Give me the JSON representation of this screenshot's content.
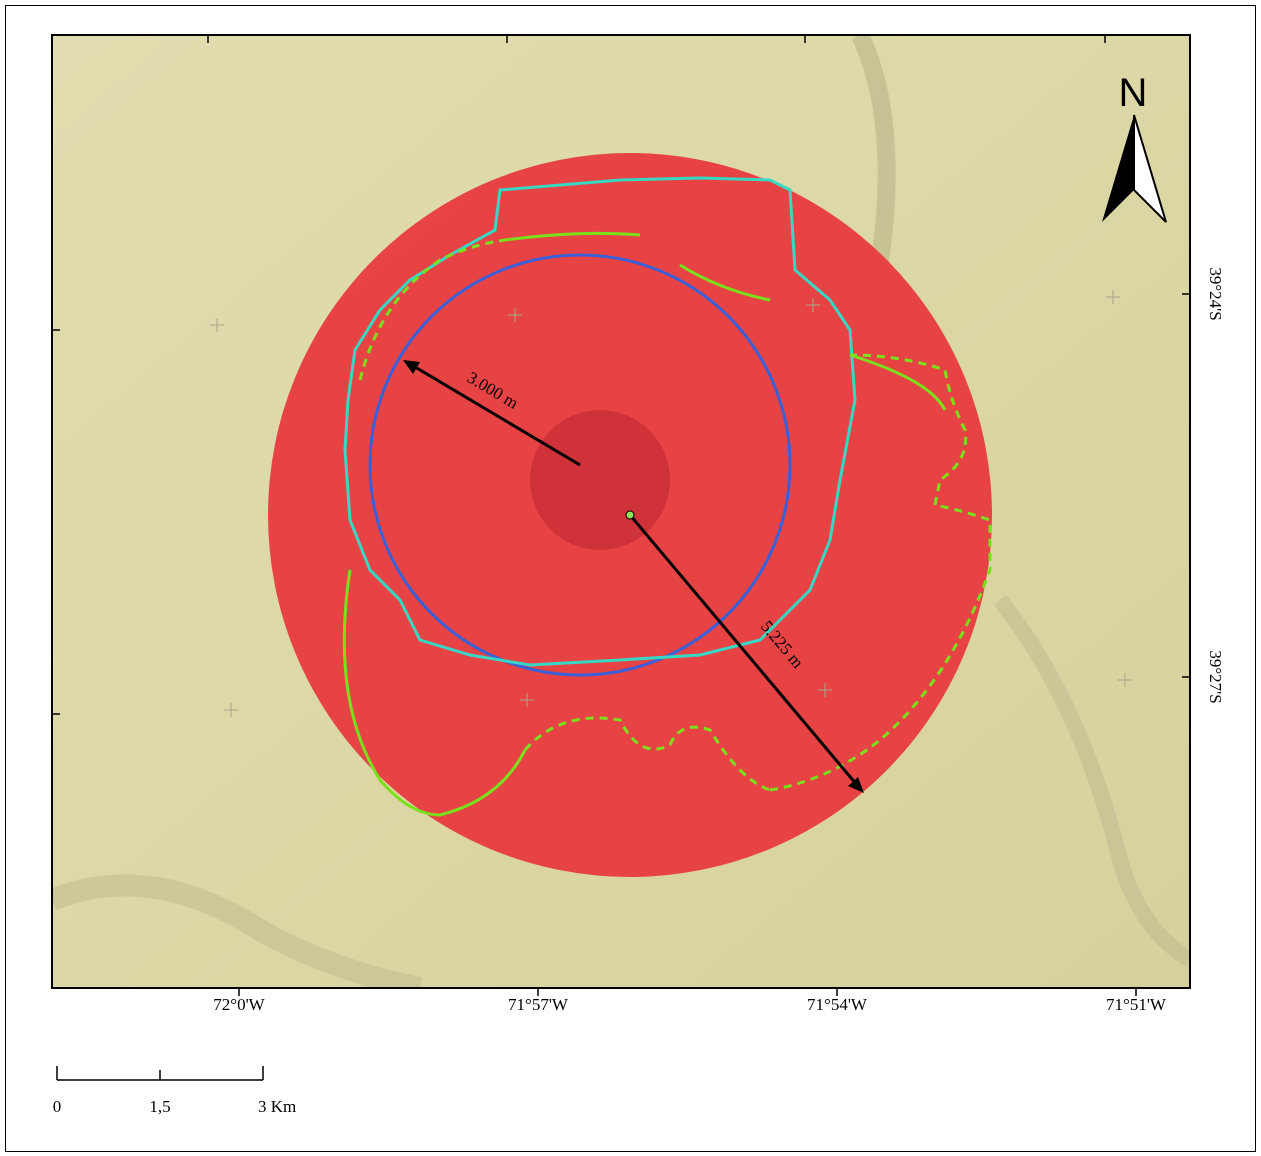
{
  "north_arrow": {
    "label": "N"
  },
  "radius_labels": [
    "3.000 m",
    "5.225 m"
  ],
  "longitude_labels": [
    "72°0'W",
    "71°57'W",
    "71°54'W",
    "71°51'W"
  ],
  "latitude_labels": [
    "39°24'S",
    "39°27'S"
  ],
  "scale_bar": {
    "labels": [
      "0",
      "1,5",
      "3 Km"
    ]
  }
}
